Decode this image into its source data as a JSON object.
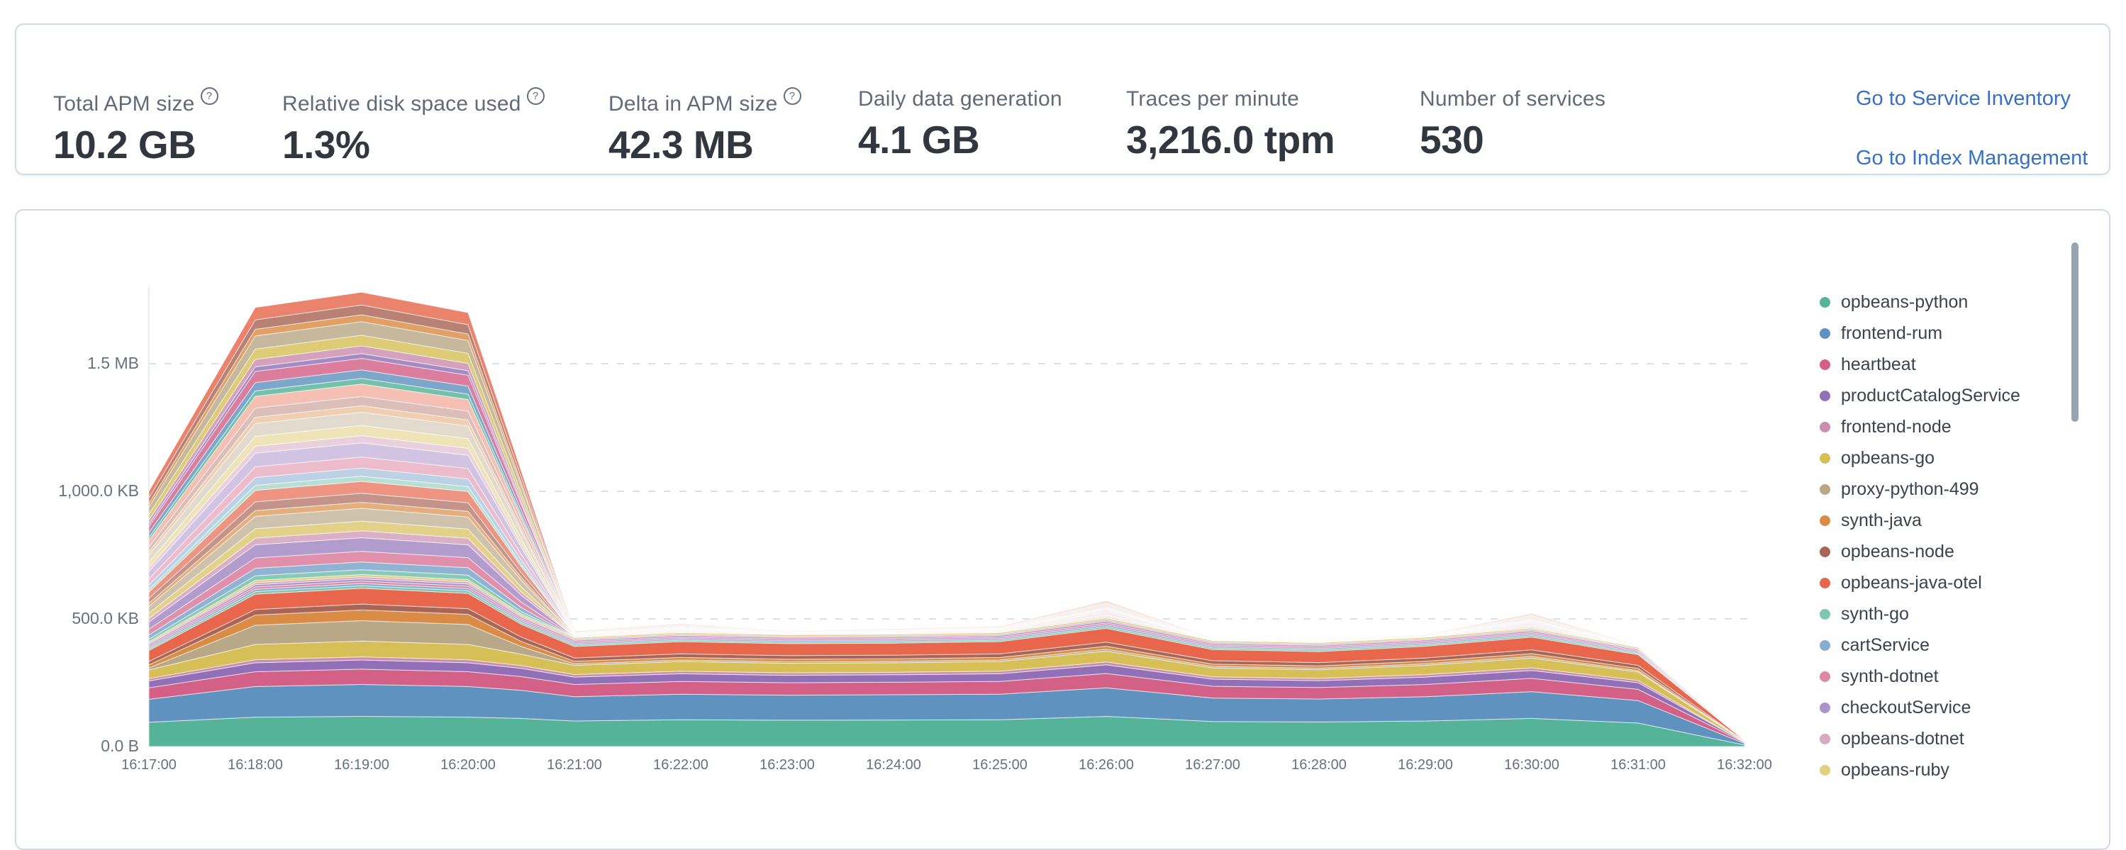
{
  "stats_panel": {
    "items": [
      {
        "label": "Total APM size",
        "value": "10.2 GB",
        "tooltip": true
      },
      {
        "label": "Relative disk space used",
        "value": "1.3%",
        "tooltip": true
      },
      {
        "label": "Delta in APM size",
        "value": "42.3 MB",
        "tooltip": true
      },
      {
        "label": "Daily data generation",
        "value": "4.1 GB",
        "tooltip": false
      },
      {
        "label": "Traces per minute",
        "value": "3,216.0 tpm",
        "tooltip": false
      },
      {
        "label": "Number of services",
        "value": "530",
        "tooltip": false
      }
    ],
    "links": [
      {
        "label": "Go to Service Inventory"
      },
      {
        "label": "Go to Index Management"
      }
    ],
    "link_color": "#3670C9"
  },
  "chart_data": {
    "type": "area",
    "stacked": true,
    "unit": "KB",
    "legend_position": "right",
    "grid": "dashed-horizontal",
    "ylim": [
      0,
      1850
    ],
    "x_labels": [
      "16:17:00",
      "16:18:00",
      "16:19:00",
      "16:20:00",
      "16:21:00",
      "16:22:00",
      "16:23:00",
      "16:24:00",
      "16:25:00",
      "16:26:00",
      "16:27:00",
      "16:28:00",
      "16:29:00",
      "16:30:00",
      "16:31:00",
      "16:32:00"
    ],
    "points_minutes": [
      0,
      1,
      2,
      3,
      3.5,
      4,
      5,
      6,
      7,
      8,
      9,
      10,
      11,
      12,
      13,
      14,
      15
    ],
    "y_ticks": [
      {
        "label": "0.0 B",
        "kb": 0
      },
      {
        "label": "500.0 KB",
        "kb": 500
      },
      {
        "label": "1,000.0 KB",
        "kb": 1000
      },
      {
        "label": "1.5 MB",
        "kb": 1500
      }
    ],
    "totals_kb": [
      1000,
      1720,
      1780,
      1700,
      1080,
      450,
      480,
      450,
      460,
      470,
      570,
      423,
      413,
      436,
      520,
      395,
      26
    ],
    "series": [
      {
        "name": "opbeans-python",
        "color": "#54B399",
        "values": [
          95,
          115,
          118,
          115,
          110,
          100,
          105,
          103,
          104,
          105,
          118,
          98,
          96,
          100,
          110,
          92,
          6
        ]
      },
      {
        "name": "frontend-rum",
        "color": "#6092C0",
        "values": [
          90,
          120,
          125,
          120,
          110,
          95,
          100,
          98,
          99,
          100,
          112,
          92,
          90,
          95,
          105,
          88,
          6
        ]
      },
      {
        "name": "heartbeat",
        "color": "#D36086",
        "values": [
          45,
          58,
          60,
          58,
          54,
          48,
          50,
          49,
          49,
          50,
          56,
          46,
          45,
          48,
          52,
          44,
          3
        ]
      },
      {
        "name": "productCatalogService",
        "color": "#9170B8",
        "values": [
          27,
          35,
          36,
          35,
          32,
          29,
          30,
          29,
          29,
          30,
          34,
          28,
          27,
          29,
          31,
          26,
          2
        ]
      },
      {
        "name": "frontend-node",
        "color": "#CA8EAE",
        "values": [
          9,
          12,
          12,
          12,
          11,
          10,
          10,
          10,
          10,
          10,
          11,
          9,
          9,
          10,
          10,
          9,
          1
        ]
      },
      {
        "name": "opbeans-go",
        "color": "#D6BF57",
        "values": [
          34,
          60,
          62,
          60,
          45,
          36,
          38,
          37,
          37,
          38,
          43,
          35,
          34,
          36,
          39,
          33,
          2
        ]
      },
      {
        "name": "proxy-python-499",
        "color": "#B9A888",
        "values": [
          8,
          75,
          80,
          78,
          30,
          6,
          6,
          6,
          6,
          6,
          7,
          6,
          6,
          6,
          6,
          5,
          0.5
        ]
      },
      {
        "name": "synth-java",
        "color": "#DA8B45",
        "values": [
          12,
          40,
          42,
          40,
          20,
          10,
          10,
          10,
          10,
          10,
          12,
          9,
          9,
          10,
          11,
          9,
          0.5
        ]
      },
      {
        "name": "opbeans-node",
        "color": "#AA6556",
        "values": [
          13,
          22,
          23,
          22,
          17,
          13,
          14,
          14,
          14,
          14,
          16,
          13,
          13,
          13,
          15,
          12,
          1
        ]
      },
      {
        "name": "opbeans-java-otel",
        "color": "#E7664C",
        "values": [
          43,
          60,
          62,
          60,
          50,
          45,
          48,
          47,
          47,
          48,
          54,
          44,
          43,
          46,
          50,
          42,
          2
        ]
      },
      {
        "name": "synth-go",
        "color": "#7FC6B2",
        "values": [
          6,
          10,
          10,
          10,
          7,
          6,
          6,
          6,
          6,
          6,
          7,
          6,
          6,
          6,
          6,
          5,
          0.3
        ]
      },
      {
        "name": "cartService",
        "color": "#88ADD0",
        "values": [
          6,
          9,
          9,
          9,
          7,
          6,
          6,
          6,
          6,
          6,
          7,
          6,
          6,
          6,
          6,
          5,
          0.3
        ]
      },
      {
        "name": "synth-dotnet",
        "color": "#DE88A4",
        "values": [
          6,
          9,
          9,
          9,
          7,
          6,
          6,
          6,
          6,
          6,
          7,
          6,
          6,
          6,
          6,
          5,
          0.3
        ]
      },
      {
        "name": "checkoutService",
        "color": "#AC94CA",
        "values": [
          6,
          9,
          9,
          9,
          7,
          6,
          6,
          6,
          6,
          6,
          7,
          6,
          6,
          6,
          6,
          5,
          0.3
        ]
      },
      {
        "name": "opbeans-dotnet",
        "color": "#D7AAC2",
        "values": [
          5,
          8,
          8,
          8,
          6,
          5,
          5,
          5,
          5,
          5,
          6,
          5,
          5,
          5,
          5,
          4,
          0.2
        ]
      },
      {
        "name": "opbeans-ruby",
        "color": "#E0CF81",
        "values": [
          6,
          9,
          9,
          9,
          7,
          6,
          6,
          6,
          6,
          6,
          7,
          6,
          6,
          6,
          6,
          5,
          0.3
        ]
      }
    ],
    "others": {
      "name": "remaining services (thin stacked bands)",
      "values": [
        589,
        1069,
        1106,
        1046,
        560,
        23,
        34,
        12,
        20,
        24,
        66,
        8,
        6,
        8,
        56,
        6,
        2
      ],
      "band_count": 30
    },
    "palette_base": [
      "#54B399",
      "#6092C0",
      "#D36086",
      "#9170B8",
      "#CA8EAE",
      "#D6BF57",
      "#B9A888",
      "#DA8B45",
      "#AA6556",
      "#E7664C"
    ],
    "axis_color": "#e8ebf1",
    "grid_color": "#dbe1ea"
  }
}
